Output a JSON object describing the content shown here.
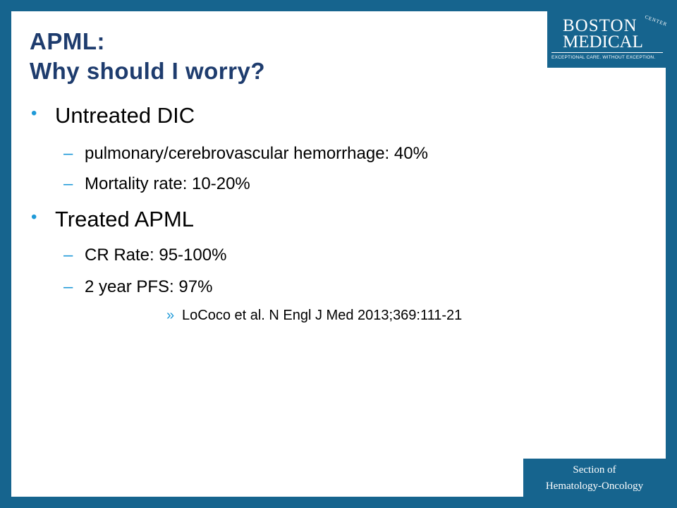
{
  "slide": {
    "title_line1": "APML:",
    "title_line2": "Why should I worry?",
    "bullets": [
      {
        "text": "Untreated DIC",
        "sub": [
          "pulmonary/cerebrovascular hemorrhage: 40%",
          "Mortality rate: 10-20%"
        ]
      },
      {
        "text": "Treated APML",
        "sub": [
          "CR Rate: 95-100%",
          "2 year PFS:  97%"
        ],
        "citation": "LoCoco et al. N Engl J Med 2013;369:111-21"
      }
    ],
    "markers": {
      "level1": "•",
      "level2": "–",
      "level3": "»"
    }
  },
  "logo": {
    "line1": "BOSTON",
    "line2": "MEDICAL",
    "center": "CENTER",
    "tagline": "EXCEPTIONAL CARE. WITHOUT EXCEPTION."
  },
  "footer": {
    "line1": "Section of",
    "line2": "Hematology-Oncology"
  },
  "colors": {
    "frame": "#16648e",
    "title": "#1e3c6e",
    "bullet": "#1f9ad8"
  }
}
